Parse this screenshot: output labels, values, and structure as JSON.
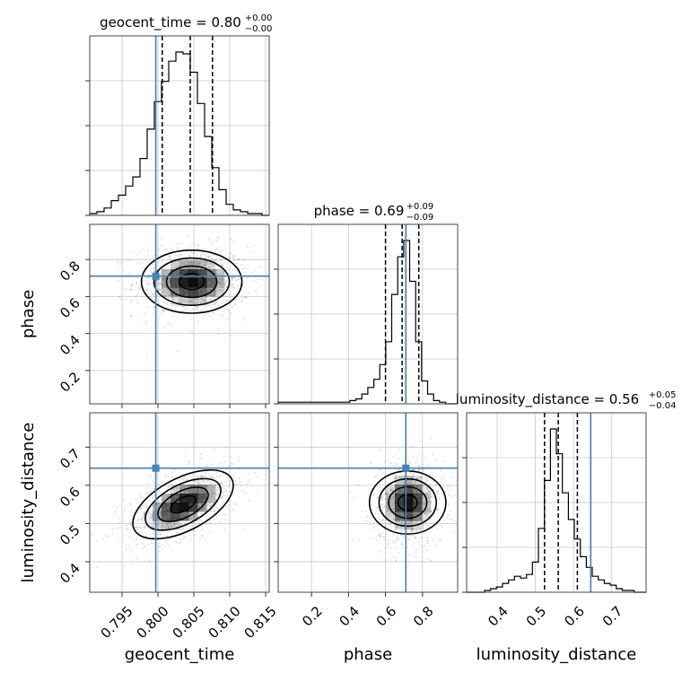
{
  "chart_data": {
    "type": "corner",
    "parameters": [
      "geocent_time",
      "phase",
      "luminosity_distance"
    ],
    "ranges": {
      "geocent_time": [
        0.7905,
        0.8155
      ],
      "phase": [
        0.02,
        0.99
      ],
      "luminosity_distance": [
        0.32,
        0.79
      ]
    },
    "truths": {
      "geocent_time": 0.7997,
      "phase": 0.71,
      "luminosity_distance": 0.645
    },
    "truth_color": "#4682b4",
    "grid": true,
    "titles": [
      {
        "param": "geocent_time",
        "prefix": "geocent_time = 0.80",
        "plus": "+0.00",
        "minus": "−0.00"
      },
      {
        "param": "phase",
        "prefix": "phase = 0.69",
        "plus": "+0.09",
        "minus": "−0.09"
      },
      {
        "param": "luminosity_distance",
        "prefix": "luminosity_distance = 0.56",
        "plus": "+0.05",
        "minus": "−0.04"
      }
    ],
    "axis_labels": {
      "x": [
        "geocent_time",
        "phase",
        "luminosity_distance"
      ],
      "y": [
        "phase",
        "luminosity_distance"
      ]
    },
    "tick_labels": {
      "geocent_time": [
        "0.795",
        "0.800",
        "0.805",
        "0.810",
        "0.815"
      ],
      "phase": [
        "0.2",
        "0.4",
        "0.6",
        "0.8"
      ],
      "phase_y": [
        "0.2",
        "0.4",
        "0.6",
        "0.8"
      ],
      "luminosity_distance": [
        "0.4",
        "0.5",
        "0.6",
        "0.7"
      ],
      "luminosity_distance_y": [
        "0.4",
        "0.5",
        "0.6",
        "0.7"
      ]
    },
    "histograms": {
      "geocent_time": {
        "start": 0.7905,
        "step": 0.001,
        "counts": [
          1,
          2,
          4,
          8,
          11,
          16,
          21,
          31,
          47,
          62,
          73,
          84,
          89,
          88,
          78,
          61,
          43,
          26,
          14,
          6,
          3,
          2,
          1,
          1,
          0
        ],
        "quantiles": [
          0.8006,
          0.8045,
          0.8076
        ]
      },
      "phase": {
        "start": 0.02,
        "step": 0.0323,
        "counts": [
          1,
          1,
          1,
          1,
          1,
          1,
          1,
          1,
          1,
          1,
          1,
          1,
          2,
          3,
          6,
          10,
          15,
          24,
          38,
          67,
          90,
          100,
          75,
          38,
          14,
          6,
          2,
          1,
          0,
          0
        ],
        "quantiles": [
          0.6,
          0.69,
          0.78
        ]
      },
      "luminosity_distance": {
        "start": 0.32,
        "step": 0.01567,
        "counts": [
          0,
          0,
          0,
          1,
          2,
          3,
          5,
          7,
          9,
          8,
          10,
          17,
          36,
          63,
          92,
          78,
          56,
          41,
          30,
          20,
          14,
          9,
          7,
          5,
          4,
          2,
          1,
          1,
          0,
          0
        ],
        "quantiles": [
          0.524,
          0.56,
          0.61
        ]
      }
    },
    "joint_2d": [
      {
        "x": "geocent_time",
        "y": "phase",
        "center": [
          0.8047,
          0.68
        ],
        "sigma": [
          0.0035,
          0.085
        ],
        "rho": 0.0
      },
      {
        "x": "geocent_time",
        "y": "luminosity_distance",
        "center": [
          0.8035,
          0.55
        ],
        "sigma": [
          0.0035,
          0.045
        ],
        "rho": 0.55
      },
      {
        "x": "phase",
        "y": "luminosity_distance",
        "center": [
          0.72,
          0.555
        ],
        "sigma": [
          0.085,
          0.05
        ],
        "rho": 0.0
      }
    ]
  }
}
